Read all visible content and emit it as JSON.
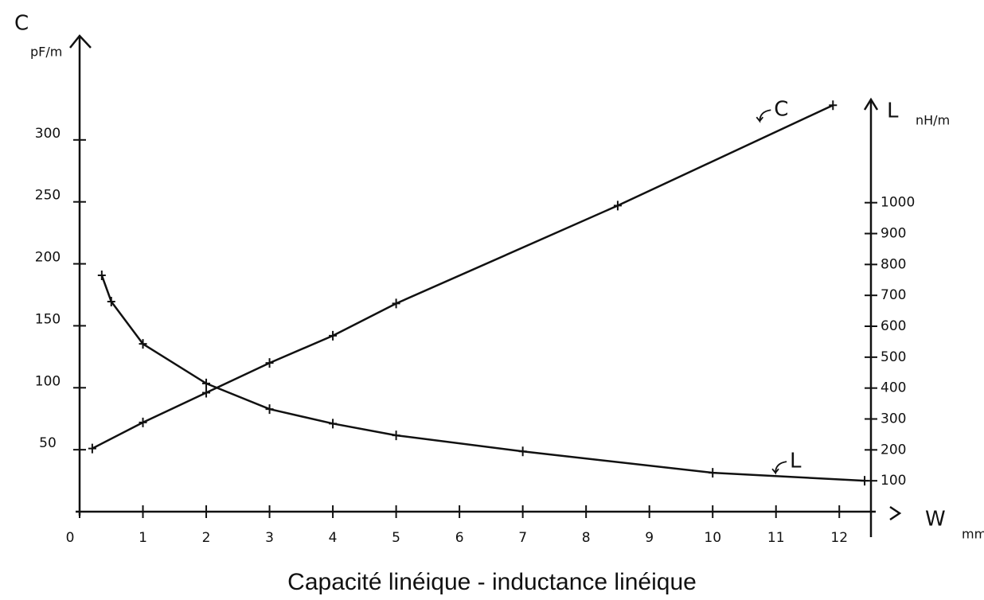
{
  "chart_data": {
    "type": "line",
    "title": "Capacité linéique - inductance linéique",
    "y_label": "C",
    "y_unit": "pF/m",
    "y2_label": "L",
    "y2_unit": "nH/m",
    "x_label": "W",
    "x_unit": "mm",
    "xlim": [
      0,
      12.5
    ],
    "xticks": [
      0,
      1,
      2,
      3,
      4,
      5,
      6,
      7,
      8,
      9,
      10,
      11,
      12
    ],
    "ylim": [
      0,
      384
    ],
    "yticks": [
      50,
      100,
      150,
      200,
      250,
      300
    ],
    "y2lim": [
      0,
      1540
    ],
    "y2ticks": [
      100,
      200,
      300,
      400,
      500,
      600,
      700,
      800,
      900,
      1000
    ],
    "series": [
      {
        "name": "C",
        "color": "#111111",
        "axis": "y",
        "x": [
          0.2,
          1,
          2,
          3,
          4,
          5,
          8.5,
          11.9
        ],
        "values": [
          51,
          72,
          96,
          120,
          142,
          168,
          247,
          328
        ]
      },
      {
        "name": "L",
        "color": "#111111",
        "axis": "y2",
        "x": [
          0.35,
          0.5,
          1,
          2,
          3,
          4,
          5,
          7,
          10,
          12.4
        ],
        "values": [
          765,
          680,
          543,
          415,
          332,
          285,
          247,
          195,
          126,
          100
        ]
      }
    ]
  }
}
